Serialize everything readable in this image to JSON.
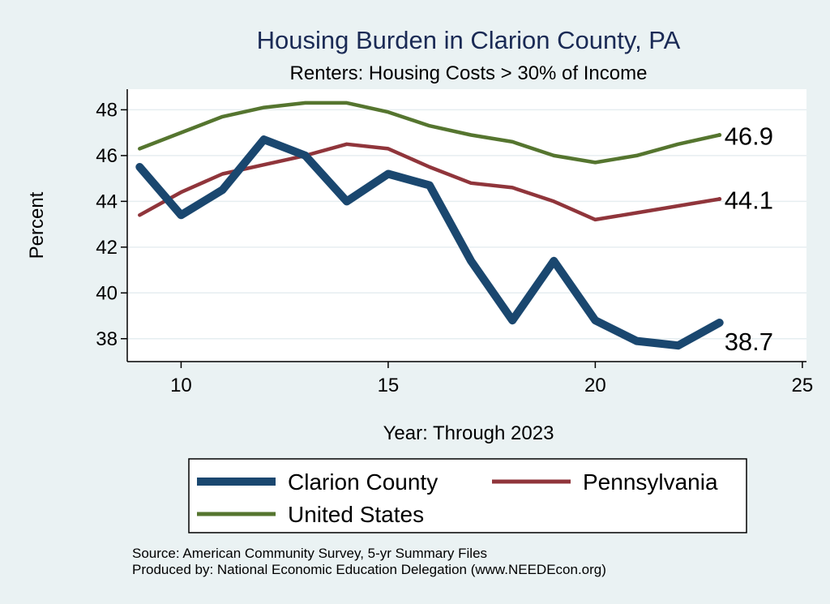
{
  "chart_data": {
    "type": "line",
    "title": "Housing Burden in Clarion County, PA",
    "subtitle": "Renters: Housing Costs > 30% of Income",
    "xlabel": "Year: Through 2023",
    "ylabel": "Percent",
    "xlim": [
      8.7,
      25.1
    ],
    "ylim": [
      37.0,
      48.9
    ],
    "xticks": [
      10,
      15,
      20,
      25
    ],
    "yticks": [
      38,
      40,
      42,
      44,
      46,
      48
    ],
    "series": [
      {
        "name": "Clarion County",
        "color": "#1a476f",
        "x": [
          9,
          10,
          11,
          12,
          13,
          14,
          15,
          16,
          17,
          18,
          19,
          20,
          21,
          22,
          23
        ],
        "values": [
          45.5,
          43.4,
          44.5,
          46.7,
          46.0,
          44.0,
          45.2,
          44.7,
          41.4,
          38.8,
          41.4,
          38.8,
          37.9,
          37.7,
          38.7
        ],
        "end_label": "38.7"
      },
      {
        "name": "Pennsylvania",
        "color": "#90353b",
        "x": [
          9,
          10,
          11,
          12,
          13,
          14,
          15,
          16,
          17,
          18,
          19,
          20,
          21,
          22,
          23
        ],
        "values": [
          43.4,
          44.4,
          45.2,
          45.6,
          46.0,
          46.5,
          46.3,
          45.5,
          44.8,
          44.6,
          44.0,
          43.2,
          43.5,
          43.8,
          44.1
        ],
        "end_label": "44.1"
      },
      {
        "name": "United States",
        "color": "#55752f",
        "x": [
          9,
          10,
          11,
          12,
          13,
          14,
          15,
          16,
          17,
          18,
          19,
          20,
          21,
          22,
          23
        ],
        "values": [
          46.3,
          47.0,
          47.7,
          48.1,
          48.3,
          48.3,
          47.9,
          47.3,
          46.9,
          46.6,
          46.0,
          45.7,
          46.0,
          46.5,
          46.9
        ],
        "end_label": "46.9"
      }
    ],
    "legend_position": "bottom",
    "grid": true
  },
  "notes": {
    "source": "Source: American Community Survey, 5-yr Summary Files",
    "produced_by": "Produced by: National Economic Education Delegation (www.NEEDEcon.org)"
  }
}
